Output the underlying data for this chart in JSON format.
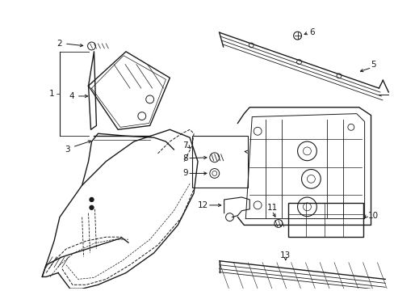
{
  "background_color": "#ffffff",
  "line_color": "#1a1a1a",
  "fig_width": 4.89,
  "fig_height": 3.6,
  "dpi": 100,
  "font_size": 7.5,
  "lw_main": 1.0,
  "lw_thin": 0.6,
  "lw_dash": 0.7
}
